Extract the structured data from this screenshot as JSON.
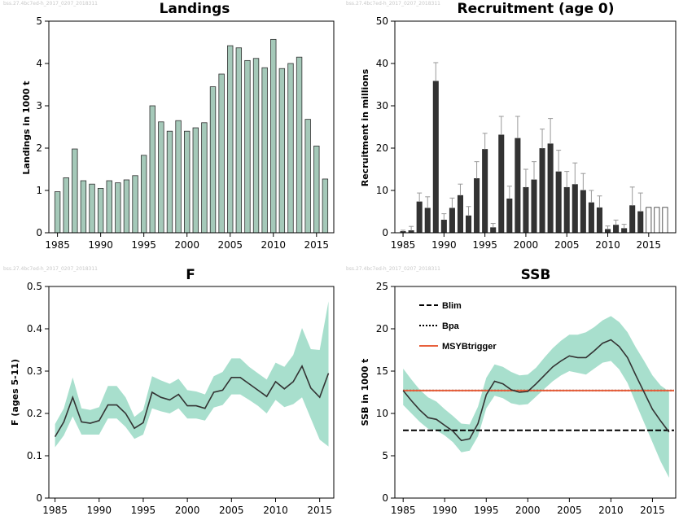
{
  "watermarks": [
    "bss.27.4bc7ed-h_2017_0207_2018311",
    "bss.27.4bc7ed-h_2017_0207_2018311",
    "bss.27.4bc7ed-h_2017_0207_2018311",
    "bss.27.4bc7ed-h_2017_0207_2018311"
  ],
  "colors": {
    "landings_bar": "#a5c9b9",
    "recruit_bar": "#333333",
    "band": "#a8dfcd",
    "line": "#333333",
    "msy": "#e8603c"
  },
  "chart_data": [
    {
      "id": "landings",
      "type": "bar",
      "title": "Landings",
      "ylabel": "Landings in 1000 t",
      "ylim": [
        0,
        5
      ],
      "yticks": [
        0,
        1,
        2,
        3,
        4,
        5
      ],
      "xticks": [
        1985,
        1990,
        1995,
        2000,
        2005,
        2010,
        2015
      ],
      "x": [
        1985,
        1986,
        1987,
        1988,
        1989,
        1990,
        1991,
        1992,
        1993,
        1994,
        1995,
        1996,
        1997,
        1998,
        1999,
        2000,
        2001,
        2002,
        2003,
        2004,
        2005,
        2006,
        2007,
        2008,
        2009,
        2010,
        2011,
        2012,
        2013,
        2014,
        2015,
        2016
      ],
      "values": [
        0.97,
        1.3,
        1.98,
        1.23,
        1.15,
        1.05,
        1.23,
        1.18,
        1.25,
        1.35,
        1.83,
        3.0,
        2.62,
        2.4,
        2.65,
        2.4,
        2.48,
        2.6,
        3.45,
        3.75,
        4.42,
        4.37,
        4.07,
        4.12,
        3.9,
        4.57,
        3.88,
        4.0,
        4.15,
        2.68,
        2.05,
        1.27
      ]
    },
    {
      "id": "recruitment",
      "type": "bar",
      "title": "Recruitment (age 0)",
      "ylabel": "Recruitment in millions",
      "ylim": [
        0,
        50
      ],
      "yticks": [
        0,
        10,
        20,
        30,
        40,
        50
      ],
      "xticks": [
        1985,
        1990,
        1995,
        2000,
        2005,
        2010,
        2015
      ],
      "x": [
        1985,
        1986,
        1987,
        1988,
        1989,
        1990,
        1991,
        1992,
        1993,
        1994,
        1995,
        1996,
        1997,
        1998,
        1999,
        2000,
        2001,
        2002,
        2003,
        2004,
        2005,
        2006,
        2007,
        2008,
        2009,
        2010,
        2011,
        2012,
        2013,
        2014,
        2015,
        2016,
        2017
      ],
      "values": [
        0.3,
        0.5,
        7.3,
        5.8,
        35.8,
        3.0,
        5.8,
        8.8,
        4.0,
        12.8,
        19.7,
        1.2,
        23.1,
        8.0,
        22.3,
        10.7,
        12.5,
        19.9,
        21.0,
        14.4,
        10.7,
        11.4,
        10.0,
        7.1,
        5.9,
        0.8,
        1.8,
        1.0,
        6.4,
        5.0,
        6.0,
        6.0,
        6.0
      ],
      "upper": [
        0.6,
        1.5,
        9.4,
        8.5,
        40.2,
        4.5,
        8.2,
        11.5,
        6.2,
        16.8,
        23.5,
        2.2,
        27.5,
        11.0,
        27.5,
        15.0,
        16.8,
        24.5,
        27.0,
        19.5,
        14.5,
        16.5,
        14.0,
        10.0,
        8.7,
        1.6,
        3.0,
        2.0,
        10.8,
        9.4,
        null,
        null,
        null
      ],
      "projected": [
        false,
        false,
        false,
        false,
        false,
        false,
        false,
        false,
        false,
        false,
        false,
        false,
        false,
        false,
        false,
        false,
        false,
        false,
        false,
        false,
        false,
        false,
        false,
        false,
        false,
        false,
        false,
        false,
        false,
        false,
        true,
        true,
        true
      ]
    },
    {
      "id": "f",
      "type": "line",
      "title": "F",
      "ylabel": "F (ages 5-11)",
      "ylim": [
        0,
        0.5
      ],
      "yticks": [
        "0",
        "0.1",
        "0.2",
        "0.3",
        "0.4",
        "0.5"
      ],
      "xticks": [
        1985,
        1990,
        1995,
        2000,
        2005,
        2010,
        2015
      ],
      "x": [
        1985,
        1986,
        1987,
        1988,
        1989,
        1990,
        1991,
        1992,
        1993,
        1994,
        1995,
        1996,
        1997,
        1998,
        1999,
        2000,
        2001,
        2002,
        2003,
        2004,
        2005,
        2006,
        2007,
        2008,
        2009,
        2010,
        2011,
        2012,
        2013,
        2014,
        2015,
        2016
      ],
      "values": [
        0.145,
        0.18,
        0.238,
        0.18,
        0.177,
        0.183,
        0.22,
        0.22,
        0.2,
        0.165,
        0.178,
        0.25,
        0.238,
        0.232,
        0.245,
        0.218,
        0.218,
        0.212,
        0.25,
        0.255,
        0.285,
        0.285,
        0.27,
        0.255,
        0.24,
        0.275,
        0.258,
        0.275,
        0.312,
        0.26,
        0.238,
        0.295
      ],
      "lower": [
        0.12,
        0.148,
        0.193,
        0.15,
        0.15,
        0.15,
        0.188,
        0.188,
        0.168,
        0.14,
        0.15,
        0.212,
        0.205,
        0.2,
        0.212,
        0.188,
        0.188,
        0.183,
        0.214,
        0.22,
        0.245,
        0.245,
        0.232,
        0.218,
        0.2,
        0.232,
        0.215,
        0.222,
        0.238,
        0.188,
        0.138,
        0.122
      ],
      "upper": [
        0.175,
        0.212,
        0.285,
        0.212,
        0.208,
        0.215,
        0.265,
        0.265,
        0.238,
        0.192,
        0.208,
        0.288,
        0.278,
        0.27,
        0.282,
        0.255,
        0.252,
        0.245,
        0.288,
        0.298,
        0.33,
        0.33,
        0.31,
        0.295,
        0.28,
        0.32,
        0.31,
        0.338,
        0.402,
        0.352,
        0.35,
        0.465
      ]
    },
    {
      "id": "ssb",
      "type": "line",
      "title": "SSB",
      "ylabel": "SSB in 1000 t",
      "ylim": [
        0,
        25
      ],
      "yticks": [
        0,
        5,
        10,
        15,
        20,
        25
      ],
      "xticks": [
        1985,
        1990,
        1995,
        2000,
        2005,
        2010,
        2015
      ],
      "x": [
        1985,
        1986,
        1987,
        1988,
        1989,
        1990,
        1991,
        1992,
        1993,
        1994,
        1995,
        1996,
        1997,
        1998,
        1999,
        2000,
        2001,
        2002,
        2003,
        2004,
        2005,
        2006,
        2007,
        2008,
        2009,
        2010,
        2011,
        2012,
        2013,
        2014,
        2015,
        2016,
        2017
      ],
      "values": [
        12.7,
        11.5,
        10.4,
        9.5,
        9.3,
        8.6,
        7.9,
        6.8,
        7.0,
        8.8,
        12.2,
        13.8,
        13.5,
        12.8,
        12.5,
        12.6,
        13.5,
        14.5,
        15.5,
        16.2,
        16.8,
        16.6,
        16.6,
        17.4,
        18.3,
        18.7,
        17.9,
        16.6,
        14.5,
        12.5,
        10.5,
        9.1,
        7.8
      ],
      "lower": [
        11.0,
        10.0,
        9.0,
        8.2,
        8.0,
        7.4,
        6.6,
        5.4,
        5.6,
        7.3,
        10.6,
        12.1,
        11.8,
        11.2,
        11.0,
        11.1,
        12.0,
        12.9,
        13.8,
        14.5,
        15.0,
        14.8,
        14.6,
        15.3,
        16.0,
        16.2,
        15.2,
        13.6,
        11.2,
        8.9,
        6.6,
        4.3,
        2.4
      ],
      "upper": [
        15.3,
        14.0,
        12.8,
        11.9,
        11.4,
        10.5,
        9.7,
        8.8,
        8.7,
        10.8,
        14.2,
        15.8,
        15.5,
        14.9,
        14.5,
        14.6,
        15.4,
        16.6,
        17.7,
        18.6,
        19.3,
        19.3,
        19.6,
        20.2,
        21.0,
        21.5,
        20.8,
        19.6,
        17.8,
        16.2,
        14.5,
        13.3,
        12.6
      ],
      "reference_lines": [
        {
          "name": "Blim",
          "value": 8.0,
          "style": "dashed",
          "color": "#000000"
        },
        {
          "name": "Bpa",
          "value": 12.7,
          "style": "dotted",
          "color": "#000000"
        },
        {
          "name": "MSYBtrigger",
          "value": 12.7,
          "style": "solid",
          "color": "#e8603c"
        }
      ],
      "legend_position": "top-left"
    }
  ]
}
